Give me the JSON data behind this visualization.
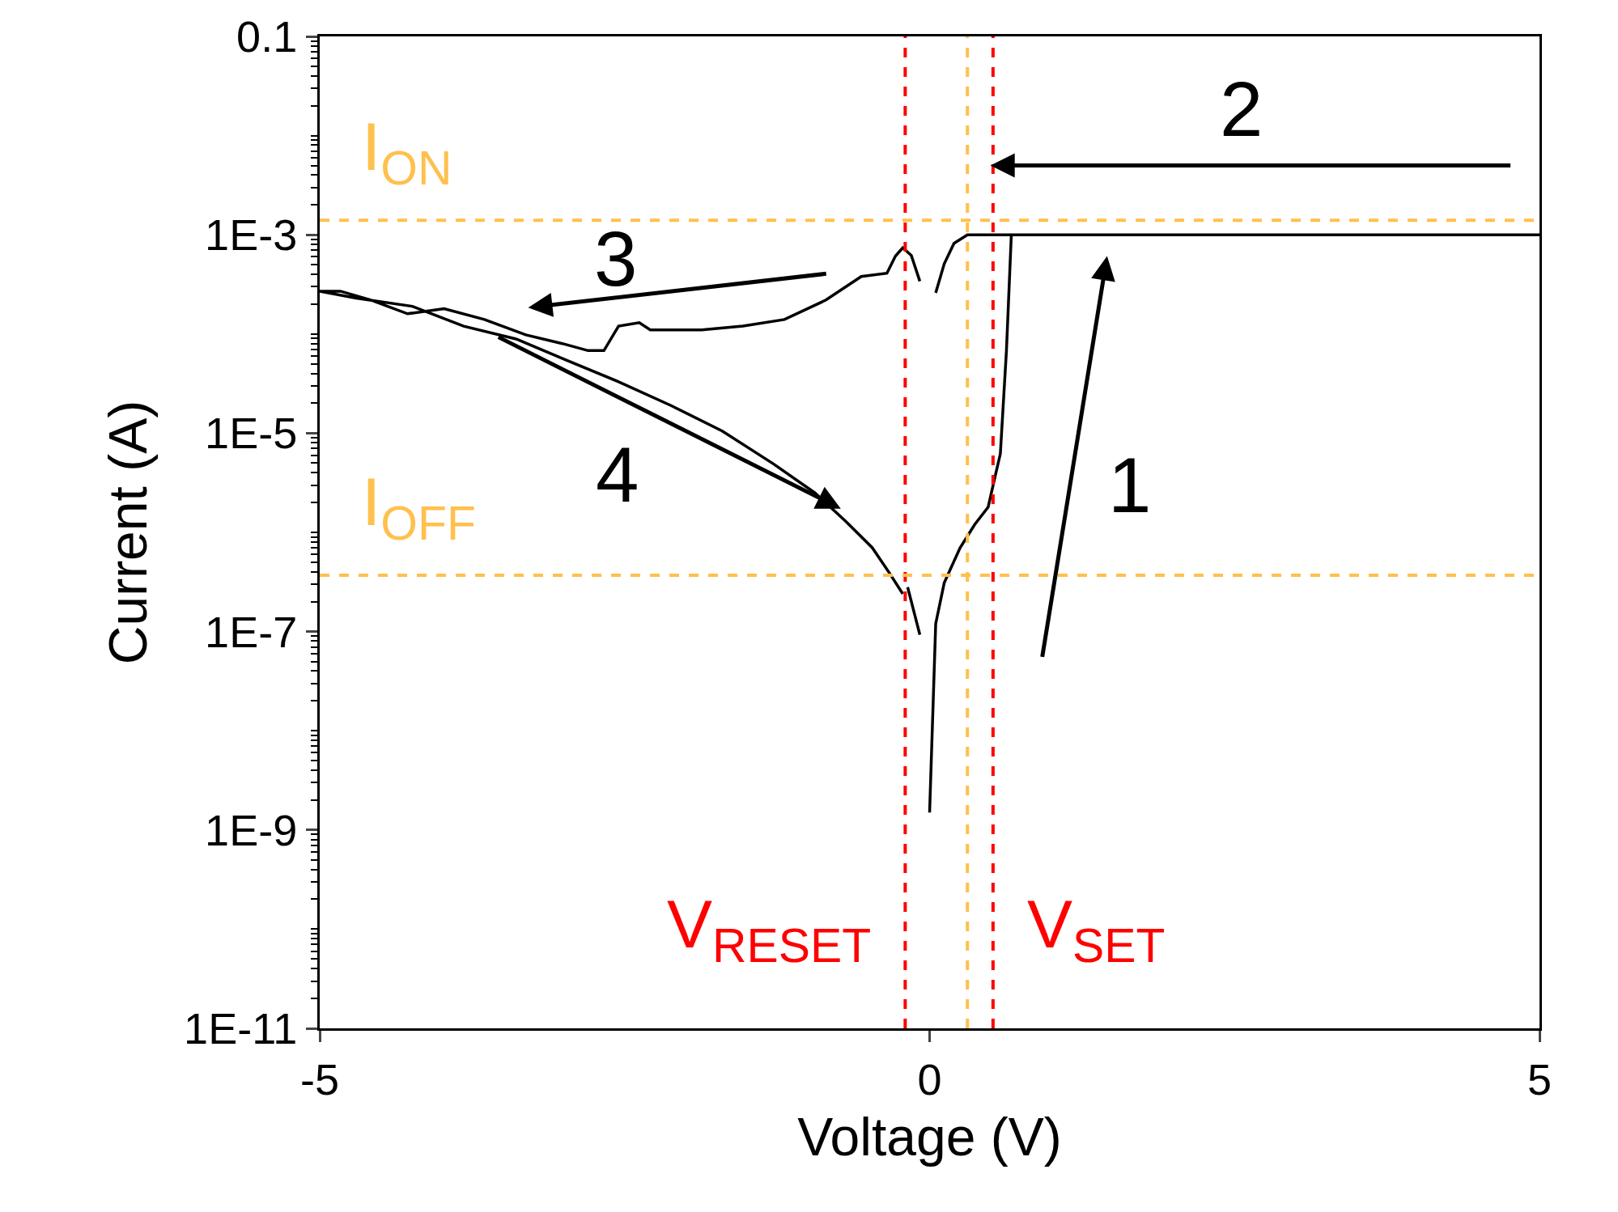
{
  "chart_data": {
    "type": "line",
    "xlabel": "Voltage (V)",
    "ylabel": "Current (A)",
    "log": "y",
    "x": [
      0.0,
      0.05,
      0.12,
      0.25,
      0.37,
      0.48,
      0.54,
      0.58,
      0.63,
      0.67,
      5,
      0.31,
      0.2,
      0.12,
      0.05,
      null,
      -0.08,
      -0.15,
      -0.22,
      -0.28,
      -0.35,
      -0.56,
      -0.85,
      -1.19,
      -1.53,
      -1.87,
      -2.12,
      -2.29,
      -2.38,
      -2.55,
      -2.67,
      -2.8,
      -3.01,
      -3.31,
      -3.65,
      -3.98,
      -4.28,
      -4.58,
      -4.83,
      -5,
      -4.7,
      -4.24,
      -3.82,
      -3.39,
      -2.97,
      -2.55,
      -2.12,
      -1.7,
      -1.28,
      -0.94,
      -0.69,
      -0.47,
      -0.33,
      -0.22,
      null,
      -0.18,
      -0.08
    ],
    "series": [
      {
        "color": "#000000",
        "values": [
          1.5e-09,
          1.2e-07,
          3.1e-07,
          7e-07,
          1.2e-06,
          1.8e-06,
          3.8e-06,
          6.2e-06,
          6.8e-05,
          0.001,
          0.001,
          0.001,
          0.00082,
          0.00051,
          0.00026,
          null,
          0.00034,
          0.00062,
          0.00074,
          0.00061,
          0.00041,
          0.00038,
          0.00022,
          0.00014,
          0.00012,
          0.00011,
          0.00011,
          0.00011,
          0.00013,
          0.00012,
          6.8e-05,
          6.8e-05,
          8e-05,
          9.8e-05,
          0.00014,
          0.00018,
          0.00016,
          0.00022,
          0.00027,
          0.00027,
          0.00023,
          0.00019,
          0.00012,
          8.9e-05,
          5.4e-05,
          3.3e-05,
          1.9e-05,
          1.05e-05,
          4.9e-06,
          2.5e-06,
          1.3e-06,
          7e-07,
          3.9e-07,
          2.4e-07,
          null,
          2.8e-07,
          9.3e-08
        ]
      }
    ],
    "xlim": [
      -5,
      5
    ],
    "xticks": [
      -5,
      0,
      5
    ],
    "ylim": [
      1e-11,
      0.1
    ],
    "yticks": [
      {
        "value": 1e-11,
        "label": "1E-11"
      },
      {
        "value": 1e-09,
        "label": "1E-9"
      },
      {
        "value": 1e-07,
        "label": "1E-7"
      },
      {
        "value": 1e-05,
        "label": "1E-5"
      },
      {
        "value": 0.001,
        "label": "1E-3"
      },
      0.1
    ],
    "ref_lines": [
      {
        "axis": "x",
        "value": -0.2,
        "label": "V$_{RESET}$",
        "color": "#ff0000",
        "line_style": "dashed"
      },
      {
        "axis": "x",
        "value": 0.52,
        "label": "V$_{SET}$",
        "color": "#ff0000",
        "line_style": "dashed"
      },
      {
        "axis": "x",
        "value": 0.31,
        "label": null,
        "color": "#ffc04d",
        "line_style": "dashed"
      },
      {
        "axis": "y",
        "value": 0.0014,
        "label": "I$_{ON}$",
        "color": "#ffc04d",
        "line_style": "dashed"
      },
      {
        "axis": "y",
        "value": 3.7e-07,
        "label": "I$_{OFF}$",
        "color": "#ffc04d",
        "line_style": "dashed"
      }
    ],
    "annotations": [
      "1",
      "2",
      "3",
      "4"
    ]
  }
}
